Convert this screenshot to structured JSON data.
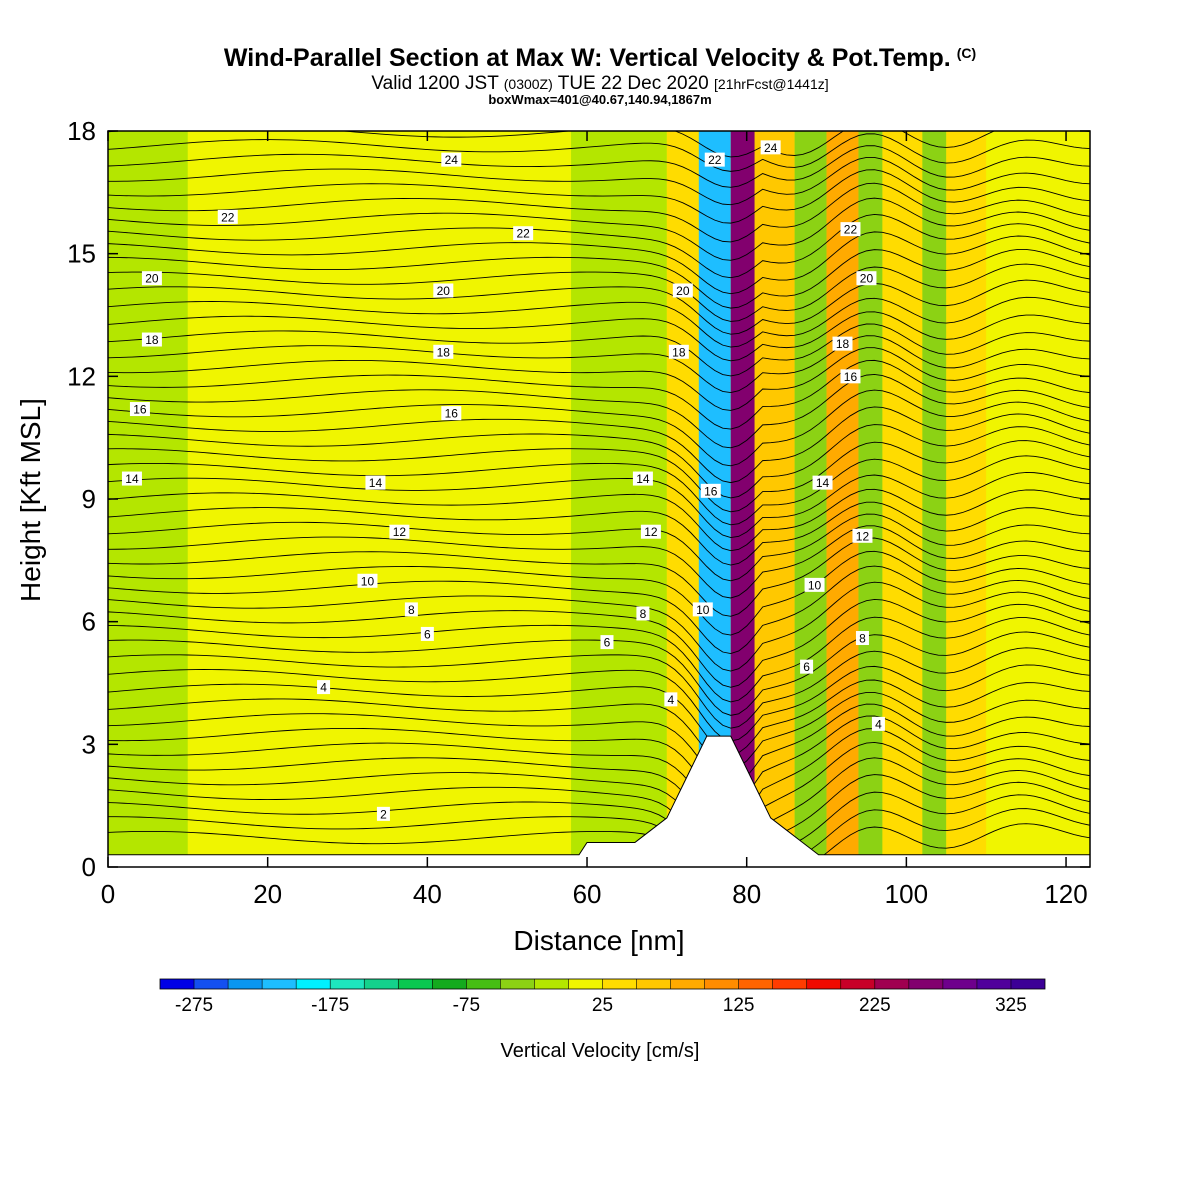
{
  "header": {
    "title": "Wind-Parallel Section at Max W: Vertical Velocity & Pot.Temp.",
    "title_mark": "(C)",
    "valid_prefix": "Valid 1200 JST",
    "valid_utc": "(0300Z)",
    "valid_date": "TUE 22 Dec 2020",
    "forecast_info": "[21hrFcst@1441z]",
    "box_info": "boxWmax=401@40.67,140.94,1867m"
  },
  "chart_data": {
    "type": "heatmap",
    "xlabel": "Distance [nm]",
    "ylabel": "Height [Kft MSL]",
    "xlim": [
      0,
      123
    ],
    "ylim": [
      0,
      18
    ],
    "xticks": [
      0,
      20,
      40,
      60,
      80,
      100,
      120
    ],
    "yticks": [
      0,
      3,
      6,
      9,
      12,
      15,
      18
    ],
    "field": "Vertical Velocity",
    "colorbar": {
      "label": "Vertical Velocity [cm/s]",
      "tick_labels": [
        "-275",
        "-175",
        "-75",
        "25",
        "125",
        "225",
        "325"
      ],
      "levels": [
        -300,
        -275,
        -250,
        -225,
        -200,
        -175,
        -150,
        -125,
        -100,
        -75,
        -50,
        -25,
        0,
        25,
        50,
        75,
        100,
        125,
        150,
        175,
        200,
        225,
        250,
        275,
        300,
        325,
        350
      ],
      "colors": [
        "#0000e6",
        "#1450f0",
        "#0a96f0",
        "#1ebeff",
        "#00f0ff",
        "#1ee6be",
        "#14d28c",
        "#0ac850",
        "#14aa1e",
        "#46be14",
        "#8cd214",
        "#b4e600",
        "#f0f500",
        "#ffdc00",
        "#ffc800",
        "#ffaa00",
        "#ff8c00",
        "#ff6400",
        "#ff3c00",
        "#f00a00",
        "#c80028",
        "#a00050",
        "#82006e",
        "#6e008c",
        "#50009b",
        "#3c0096"
      ]
    },
    "background_w_values": [
      {
        "x": [
          0,
          10
        ],
        "w": -10
      },
      {
        "x": [
          10,
          25
        ],
        "w": 5
      },
      {
        "x": [
          25,
          48
        ],
        "w": 12
      },
      {
        "x": [
          48,
          58
        ],
        "w": 8
      },
      {
        "x": [
          58,
          70
        ],
        "w": -15
      },
      {
        "x": [
          70,
          74
        ],
        "w": 30
      },
      {
        "x": [
          74,
          78
        ],
        "w": -220
      },
      {
        "x": [
          78,
          81
        ],
        "w": 260
      },
      {
        "x": [
          81,
          86
        ],
        "w": 60
      },
      {
        "x": [
          86,
          90
        ],
        "w": -40
      },
      {
        "x": [
          90,
          94
        ],
        "w": 80
      },
      {
        "x": [
          94,
          97
        ],
        "w": -40
      },
      {
        "x": [
          97,
          102
        ],
        "w": 40
      },
      {
        "x": [
          102,
          105
        ],
        "w": -30
      },
      {
        "x": [
          105,
          110
        ],
        "w": 30
      },
      {
        "x": [
          110,
          123
        ],
        "w": 5
      }
    ],
    "terrain": [
      [
        0,
        0.3
      ],
      [
        59,
        0.3
      ],
      [
        60,
        0.6
      ],
      [
        66,
        0.6
      ],
      [
        68,
        0.9
      ],
      [
        70,
        1.2
      ],
      [
        71,
        1.6
      ],
      [
        72,
        2.0
      ],
      [
        73,
        2.4
      ],
      [
        74,
        2.8
      ],
      [
        75,
        3.2
      ],
      [
        78,
        3.2
      ],
      [
        79,
        2.8
      ],
      [
        80,
        2.4
      ],
      [
        81,
        2.0
      ],
      [
        82,
        1.6
      ],
      [
        83,
        1.2
      ],
      [
        85,
        0.9
      ],
      [
        87,
        0.6
      ],
      [
        89,
        0.3
      ],
      [
        123,
        0.3
      ]
    ],
    "theta_contours": {
      "labeled_values": [
        2,
        4,
        6,
        8,
        10,
        12,
        14,
        16,
        18,
        20,
        22,
        24
      ],
      "labels": [
        {
          "text": "2",
          "x": 34.5,
          "y": 1.3
        },
        {
          "text": "4",
          "x": 27,
          "y": 4.4
        },
        {
          "text": "4",
          "x": 70.5,
          "y": 4.1
        },
        {
          "text": "4",
          "x": 96.5,
          "y": 3.5
        },
        {
          "text": "6",
          "x": 40,
          "y": 5.7
        },
        {
          "text": "6",
          "x": 62.5,
          "y": 5.5
        },
        {
          "text": "6",
          "x": 87.5,
          "y": 4.9
        },
        {
          "text": "8",
          "x": 38,
          "y": 6.3
        },
        {
          "text": "8",
          "x": 67,
          "y": 6.2
        },
        {
          "text": "8",
          "x": 94.5,
          "y": 5.6
        },
        {
          "text": "10",
          "x": 32.5,
          "y": 7.0
        },
        {
          "text": "10",
          "x": 74.5,
          "y": 6.3
        },
        {
          "text": "10",
          "x": 88.5,
          "y": 6.9
        },
        {
          "text": "12",
          "x": 36.5,
          "y": 8.2
        },
        {
          "text": "12",
          "x": 68,
          "y": 8.2
        },
        {
          "text": "12",
          "x": 94.5,
          "y": 8.1
        },
        {
          "text": "14",
          "x": 3,
          "y": 9.5
        },
        {
          "text": "14",
          "x": 33.5,
          "y": 9.4
        },
        {
          "text": "14",
          "x": 67,
          "y": 9.5
        },
        {
          "text": "14",
          "x": 89.5,
          "y": 9.4
        },
        {
          "text": "16",
          "x": 4,
          "y": 11.2
        },
        {
          "text": "16",
          "x": 43,
          "y": 11.1
        },
        {
          "text": "16",
          "x": 75.5,
          "y": 9.2
        },
        {
          "text": "16",
          "x": 93,
          "y": 12.0
        },
        {
          "text": "18",
          "x": 5.5,
          "y": 12.9
        },
        {
          "text": "18",
          "x": 42,
          "y": 12.6
        },
        {
          "text": "18",
          "x": 71.5,
          "y": 12.6
        },
        {
          "text": "18",
          "x": 92,
          "y": 12.8
        },
        {
          "text": "20",
          "x": 5.5,
          "y": 14.4
        },
        {
          "text": "20",
          "x": 42,
          "y": 14.1
        },
        {
          "text": "20",
          "x": 72,
          "y": 14.1
        },
        {
          "text": "20",
          "x": 95,
          "y": 14.4
        },
        {
          "text": "22",
          "x": 15,
          "y": 15.9
        },
        {
          "text": "22",
          "x": 52,
          "y": 15.5
        },
        {
          "text": "22",
          "x": 76,
          "y": 17.3
        },
        {
          "text": "22",
          "x": 93,
          "y": 15.6
        },
        {
          "text": "24",
          "x": 43,
          "y": 17.3
        },
        {
          "text": "24",
          "x": 83,
          "y": 17.6
        }
      ]
    }
  }
}
